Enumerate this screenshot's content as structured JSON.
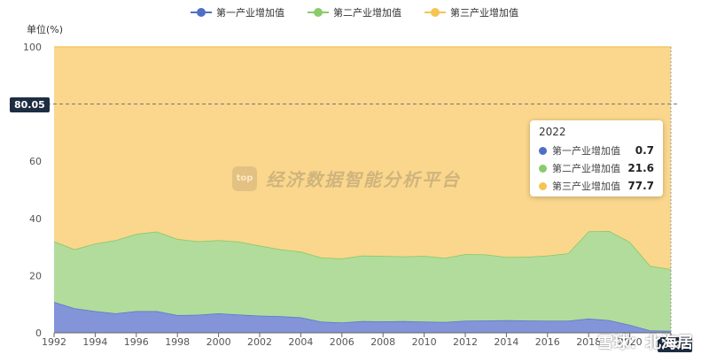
{
  "legend": [
    {
      "label": "第一产业增加值",
      "color": "#4f6fc6"
    },
    {
      "label": "第二产业增加值",
      "color": "#8acb6a"
    },
    {
      "label": "第三产业增加值",
      "color": "#f6c451"
    }
  ],
  "unit_label": "单位(%)",
  "pointer": {
    "y_value": "80.05",
    "x_value": "2022"
  },
  "tooltip": {
    "title": "2022",
    "rows": [
      {
        "name": "第一产业增加值",
        "value": "0.7",
        "color": "#4f6fc6"
      },
      {
        "name": "第二产业增加值",
        "value": "21.6",
        "color": "#8acb6a"
      },
      {
        "name": "第三产业增加值",
        "value": "77.7",
        "color": "#f6c451"
      }
    ]
  },
  "watermark": {
    "logo": "top",
    "text": "经济数据智能分析平台"
  },
  "snowball_mark": "雪球：北海居",
  "chart_data": {
    "type": "area",
    "stacked": true,
    "x": [
      1992,
      1993,
      1994,
      1995,
      1996,
      1997,
      1998,
      1999,
      2000,
      2001,
      2002,
      2003,
      2004,
      2005,
      2006,
      2007,
      2008,
      2009,
      2010,
      2011,
      2012,
      2013,
      2014,
      2015,
      2016,
      2017,
      2018,
      2019,
      2020,
      2021,
      2022
    ],
    "x_ticks": [
      1992,
      1994,
      1996,
      1998,
      2000,
      2002,
      2004,
      2006,
      2008,
      2010,
      2012,
      2014,
      2016,
      2018,
      2020,
      2022
    ],
    "y_ticks": [
      0,
      20,
      40,
      60,
      80,
      100
    ],
    "ylim": [
      0,
      100
    ],
    "series": [
      {
        "name": "第一产业增加值",
        "color": "#8394d9",
        "values": [
          10.8,
          8.6,
          7.6,
          6.8,
          7.6,
          7.6,
          6.2,
          6.3,
          6.8,
          6.4,
          6.0,
          5.8,
          5.4,
          3.9,
          3.6,
          4.1,
          4.0,
          4.1,
          3.9,
          3.8,
          4.2,
          4.3,
          4.4,
          4.3,
          4.2,
          4.2,
          5.0,
          4.4,
          2.8,
          0.8,
          0.7
        ]
      },
      {
        "name": "第二产业增加值",
        "color": "#b1dc9c",
        "values": [
          21.2,
          20.6,
          23.6,
          25.6,
          27.0,
          27.8,
          26.6,
          25.7,
          25.6,
          25.5,
          24.5,
          23.4,
          23.0,
          22.4,
          22.4,
          22.9,
          22.9,
          22.6,
          23.0,
          22.4,
          23.3,
          23.1,
          22.1,
          22.3,
          22.8,
          23.6,
          30.5,
          31.2,
          29.0,
          22.6,
          21.6
        ]
      },
      {
        "name": "第三产业增加值",
        "color": "#fad78c",
        "values": [
          68.0,
          70.8,
          68.8,
          67.6,
          65.4,
          64.6,
          67.2,
          68.0,
          67.6,
          68.1,
          69.5,
          70.8,
          71.6,
          73.7,
          74.0,
          73.0,
          73.1,
          73.3,
          73.1,
          73.8,
          72.5,
          72.6,
          73.5,
          73.4,
          73.0,
          72.2,
          64.5,
          64.4,
          68.2,
          76.6,
          77.7
        ]
      }
    ]
  }
}
